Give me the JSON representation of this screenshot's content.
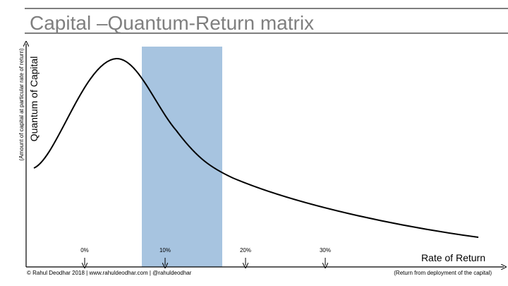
{
  "header": {
    "title": "Capital –Quantum-Return matrix"
  },
  "diagram": {
    "y_axis_label": "Quantum of Capital",
    "y_axis_note": "(Amount of capital at particular rate of return)",
    "x_axis_label": "Rate of Return",
    "x_axis_note": "(Return from deployment of the capital)",
    "x_markers": [
      "0%",
      "10%",
      "20%",
      "30%"
    ]
  },
  "footer": {
    "credit": "© Rahul Deodhar 2018 | www.rahuldeodhar.com | @rahuldeodhar"
  }
}
